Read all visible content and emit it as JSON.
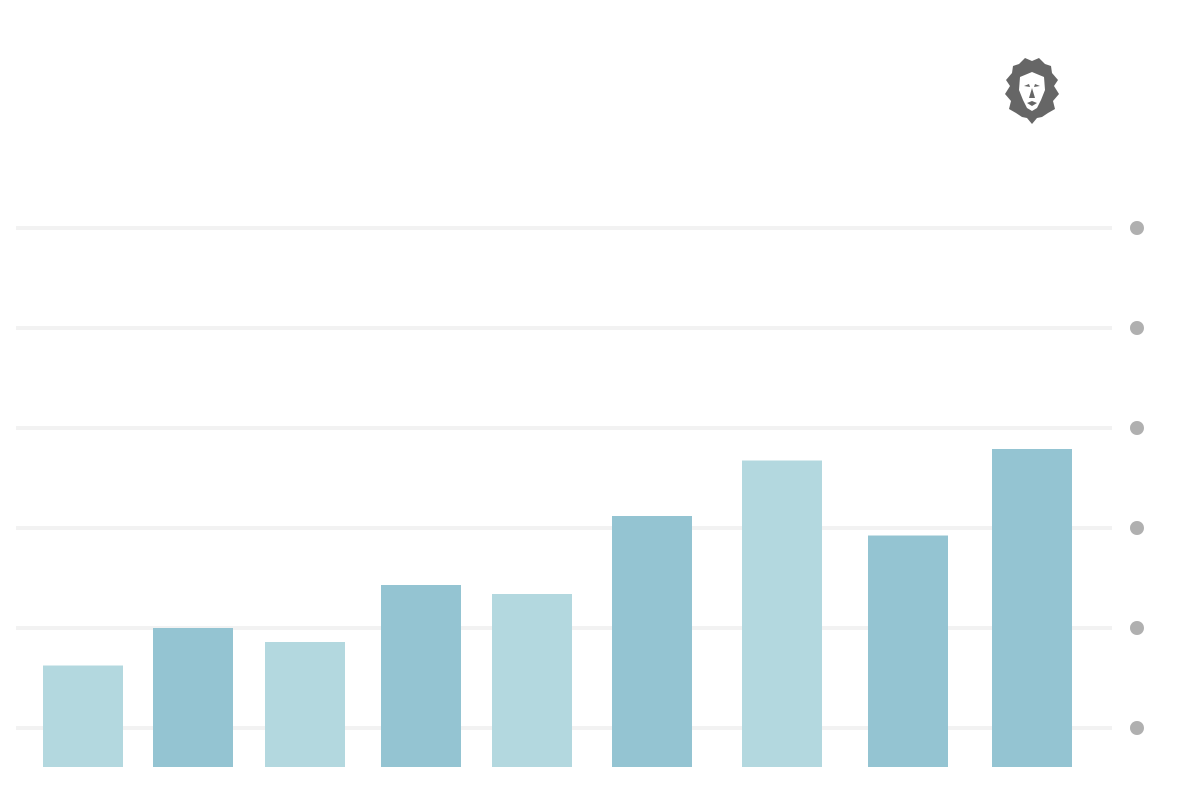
{
  "chart_data": {
    "type": "bar",
    "title": "",
    "xlabel": "",
    "ylabel": "",
    "ylim": [
      0,
      1
    ],
    "grid": true,
    "legend": "none",
    "values": [
      0.203,
      0.278,
      0.25,
      0.364,
      0.346,
      0.502,
      0.613,
      0.463,
      0.636
    ],
    "bar_colors": [
      "#b3d8df",
      "#94c4d2",
      "#b3d8df",
      "#94c4d2",
      "#b3d8df",
      "#94c4d2",
      "#b3d8df",
      "#94c4d2",
      "#94c4d2"
    ],
    "highlight_index": 8,
    "highlight_icon": "lion-head-icon"
  },
  "colors": {
    "gridline": "#f2f2f2",
    "grid_marker": "#b0b0b0",
    "icon": "#666666",
    "icon_face": "#ffffff"
  }
}
